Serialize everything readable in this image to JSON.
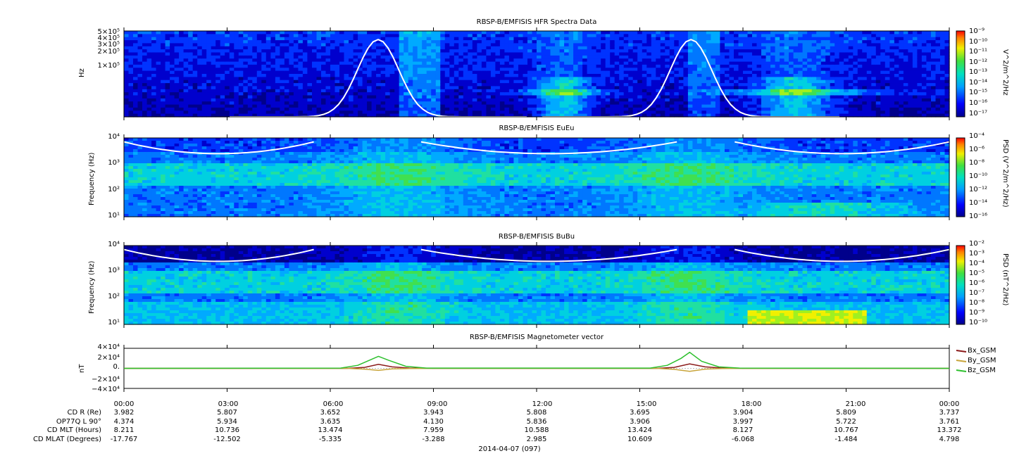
{
  "chart_data": [
    {
      "type": "heatmap",
      "title": "RBSP-B/EMFISIS  HFR Spectra Data",
      "ylabel": "Hz",
      "ytick_labels": [
        "5×10⁵",
        "4×10⁵",
        "3×10⁵",
        "2×10⁵",
        "1×10⁵"
      ],
      "colorbar_label": "V^2/m^2/Hz",
      "colorbar_ticks": [
        "10⁻⁹",
        "10⁻¹⁰",
        "10⁻¹¹",
        "10⁻¹²",
        "10⁻¹³",
        "10⁻¹⁴",
        "10⁻¹⁵",
        "10⁻¹⁶",
        "10⁻¹⁷"
      ],
      "overlay_curve": "white"
    },
    {
      "type": "heatmap",
      "title": "RBSP-B/EMFISIS  EuEu",
      "ylabel": "Frequency (Hz)",
      "ytick_labels": [
        "10⁴",
        "10³",
        "10²",
        "10¹"
      ],
      "colorbar_label": "PSD (V^2/m^2/Hz)",
      "colorbar_ticks": [
        "10⁻⁴",
        "10⁻⁶",
        "10⁻⁸",
        "10⁻¹⁰",
        "10⁻¹²",
        "10⁻¹⁴",
        "10⁻¹⁶"
      ]
    },
    {
      "type": "heatmap",
      "title": "RBSP-B/EMFISIS  BuBu",
      "ylabel": "Frequency (Hz)",
      "ytick_labels": [
        "10⁴",
        "10³",
        "10²",
        "10¹"
      ],
      "colorbar_label": "PSD (nT^2/Hz)",
      "colorbar_ticks": [
        "10⁻²",
        "10⁻³",
        "10⁻⁴",
        "10⁻⁵",
        "10⁻⁶",
        "10⁻⁷",
        "10⁻⁸",
        "10⁻⁹",
        "10⁻¹⁰"
      ]
    },
    {
      "type": "line",
      "title": "RBSP-B/EMFISIS  Magnetometer vector",
      "ylabel": "nT",
      "ytick_labels": [
        "4×10⁴",
        "2×10⁴",
        "0.",
        "−2×10⁴",
        "−4×10⁴"
      ],
      "ylim": [
        -40000,
        40000
      ],
      "xlim_hours": [
        0,
        24
      ],
      "series": [
        {
          "name": "Bx_GSM",
          "color": "#8b1a1a",
          "x_hours": [
            0,
            6.5,
            7.0,
            7.4,
            7.8,
            8.3,
            9,
            15.5,
            16.0,
            16.45,
            16.9,
            17.4,
            18,
            24
          ],
          "values": [
            0,
            0,
            2000,
            8000,
            3000,
            500,
            0,
            0,
            2000,
            9000,
            3000,
            500,
            0,
            0
          ]
        },
        {
          "name": "By_GSM",
          "color": "#c8a43a",
          "x_hours": [
            0,
            6.5,
            7.0,
            7.4,
            7.8,
            8.3,
            9,
            15.5,
            16.0,
            16.45,
            16.9,
            17.4,
            18,
            24
          ],
          "values": [
            0,
            0,
            -1500,
            -4000,
            -1000,
            -300,
            0,
            0,
            -2000,
            -6000,
            -1500,
            -300,
            0,
            0
          ]
        },
        {
          "name": "Bz_GSM",
          "color": "#2ec02e",
          "x_hours": [
            0,
            6.3,
            6.8,
            7.2,
            7.4,
            7.7,
            8.2,
            8.8,
            15.3,
            15.8,
            16.2,
            16.45,
            16.8,
            17.3,
            17.9,
            24
          ],
          "values": [
            0,
            500,
            6000,
            18000,
            24000,
            16000,
            4000,
            500,
            500,
            6000,
            20000,
            32000,
            14000,
            3000,
            500,
            0
          ]
        }
      ]
    }
  ],
  "x_axis": {
    "tick_labels": [
      "00:00",
      "03:00",
      "06:00",
      "09:00",
      "12:00",
      "15:00",
      "18:00",
      "21:00",
      "00:00"
    ],
    "date_label": "2014-04-07 (097)"
  },
  "ephemeris": {
    "rows": [
      {
        "label": "CD R (Re)",
        "values": [
          "3.982",
          "5.807",
          "3.652",
          "3.943",
          "5.808",
          "3.695",
          "3.904",
          "5.809",
          "3.737"
        ]
      },
      {
        "label": "OP77Q L 90°",
        "values": [
          "4.374",
          "5.934",
          "3.635",
          "4.130",
          "5.836",
          "3.906",
          "3.997",
          "5.722",
          "3.761"
        ]
      },
      {
        "label": "CD MLT (Hours)",
        "values": [
          "8.211",
          "10.736",
          "13.474",
          "7.959",
          "10.588",
          "13.424",
          "8.127",
          "10.767",
          "13.372"
        ]
      },
      {
        "label": "CD MLAT (Degrees)",
        "values": [
          "-17.767",
          "-12.502",
          "-5.335",
          "-3.288",
          "2.985",
          "10.609",
          "-6.068",
          "-1.484",
          "4.798"
        ]
      }
    ]
  }
}
